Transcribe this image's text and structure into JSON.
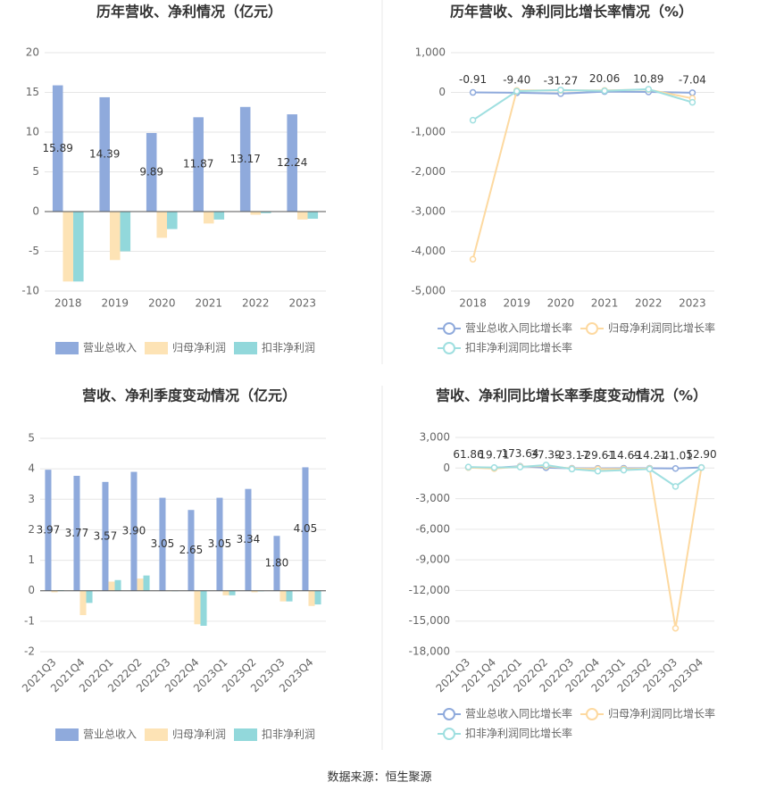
{
  "source": "数据来源：恒生聚源",
  "chart_data": [
    {
      "type": "bar",
      "title": "历年营收、净利情况（亿元）",
      "categories": [
        "2018",
        "2019",
        "2020",
        "2021",
        "2022",
        "2023"
      ],
      "series": [
        {
          "name": "营业总收入",
          "color": "#8faadc",
          "values": [
            15.89,
            14.39,
            9.89,
            11.87,
            13.17,
            12.24
          ],
          "value_labels": [
            "15.89",
            "14.39",
            "9.89",
            "11.87",
            "13.17",
            "12.24"
          ]
        },
        {
          "name": "归母净利润",
          "color": "#fde3b5",
          "values": [
            -8.8,
            -6.1,
            -3.3,
            -1.5,
            -0.4,
            -1.0
          ]
        },
        {
          "name": "扣非净利润",
          "color": "#92d8db",
          "values": [
            -8.8,
            -5.0,
            -2.2,
            -1.0,
            -0.2,
            -0.9
          ]
        }
      ],
      "ylim": [
        -10,
        20
      ],
      "yticks": [
        -10,
        -5,
        0,
        5,
        10,
        15,
        20
      ],
      "grid": true
    },
    {
      "type": "line",
      "title": "历年营收、净利同比增长率情况（%）",
      "categories": [
        "2018",
        "2019",
        "2020",
        "2021",
        "2022",
        "2023"
      ],
      "series": [
        {
          "name": "营业总收入同比增长率",
          "color": "#8faadc",
          "values": [
            -0.91,
            -9.4,
            -31.27,
            20.06,
            10.89,
            -7.04
          ],
          "value_labels": [
            "-0.91",
            "-9.40",
            "-31.27",
            "20.06",
            "10.89",
            "-7.04"
          ]
        },
        {
          "name": "归母净利润同比增长率",
          "color": "#fdd9a0",
          "values": [
            -4200,
            50,
            50,
            50,
            70,
            -150
          ]
        },
        {
          "name": "扣非净利润同比增长率",
          "color": "#9fdfe0",
          "values": [
            -700,
            30,
            60,
            40,
            80,
            -250
          ]
        }
      ],
      "ylim": [
        -5000,
        1000
      ],
      "yticks": [
        {
          "value": -5000,
          "label": "-5,000"
        },
        {
          "value": -4000,
          "label": "-4,000"
        },
        {
          "value": -3000,
          "label": "-3,000"
        },
        {
          "value": -2000,
          "label": "-2,000"
        },
        {
          "value": -1000,
          "label": "-1,000"
        },
        0,
        {
          "value": 1000,
          "label": "1,000"
        }
      ],
      "grid": true
    },
    {
      "type": "bar",
      "title": "营收、净利季度变动情况（亿元）",
      "categories": [
        "2021Q3",
        "2021Q4",
        "2022Q1",
        "2022Q2",
        "2022Q3",
        "2022Q4",
        "2023Q1",
        "2023Q2",
        "2023Q3",
        "2023Q4"
      ],
      "series": [
        {
          "name": "营业总收入",
          "color": "#8faadc",
          "values": [
            3.97,
            3.77,
            3.57,
            3.9,
            3.05,
            2.65,
            3.05,
            3.34,
            1.8,
            4.05
          ],
          "value_labels": [
            "3.97",
            "3.77",
            "3.57",
            "3.90",
            "3.05",
            "2.65",
            "3.05",
            "3.34",
            "1.80",
            "4.05"
          ]
        },
        {
          "name": "归母净利润",
          "color": "#fde3b5",
          "values": [
            -0.05,
            -0.8,
            0.3,
            0.4,
            0.0,
            -1.1,
            -0.15,
            -0.05,
            -0.35,
            -0.5
          ]
        },
        {
          "name": "扣非净利润",
          "color": "#92d8db",
          "values": [
            0.02,
            -0.4,
            0.35,
            0.5,
            0.0,
            -1.15,
            -0.15,
            -0.02,
            -0.35,
            -0.45
          ]
        }
      ],
      "ylim": [
        -2,
        5
      ],
      "yticks": [
        -2,
        -1,
        0,
        1,
        2,
        3,
        4,
        5
      ],
      "grid": true
    },
    {
      "type": "line",
      "title": "营收、净利同比增长率季度变动情况（%）",
      "categories": [
        "2021Q3",
        "2021Q4",
        "2022Q1",
        "2022Q2",
        "2022Q3",
        "2022Q4",
        "2023Q1",
        "2023Q2",
        "2023Q3",
        "2023Q4"
      ],
      "series": [
        {
          "name": "营业总收入同比增长率",
          "color": "#8faadc",
          "values": [
            61.86,
            19.71,
            173.64,
            37.39,
            -23.17,
            -29.61,
            -14.69,
            -14.21,
            -41.01,
            52.9
          ],
          "value_labels": [
            "61.86",
            "19.71",
            "173.64",
            "37.39",
            "-23.17",
            "-29.61",
            "-14.69",
            "-14.21",
            "-41.01",
            "52.90"
          ]
        },
        {
          "name": "归母净利润同比增长率",
          "color": "#fdd9a0",
          "values": [
            50,
            -50,
            150,
            200,
            -50,
            -100,
            -100,
            -50,
            -15700,
            50
          ]
        },
        {
          "name": "扣非净利润同比增长率",
          "color": "#9fdfe0",
          "values": [
            100,
            50,
            100,
            300,
            -100,
            -300,
            -200,
            -100,
            -1800,
            50
          ]
        }
      ],
      "ylim": [
        -18000,
        3000
      ],
      "yticks": [
        {
          "value": -18000,
          "label": "-18,000"
        },
        {
          "value": -15000,
          "label": "-15,000"
        },
        {
          "value": -12000,
          "label": "-12,000"
        },
        {
          "value": -9000,
          "label": "-9,000"
        },
        {
          "value": -6000,
          "label": "-6,000"
        },
        {
          "value": -3000,
          "label": "-3,000"
        },
        0,
        {
          "value": 3000,
          "label": "3,000"
        }
      ],
      "grid": true
    }
  ]
}
